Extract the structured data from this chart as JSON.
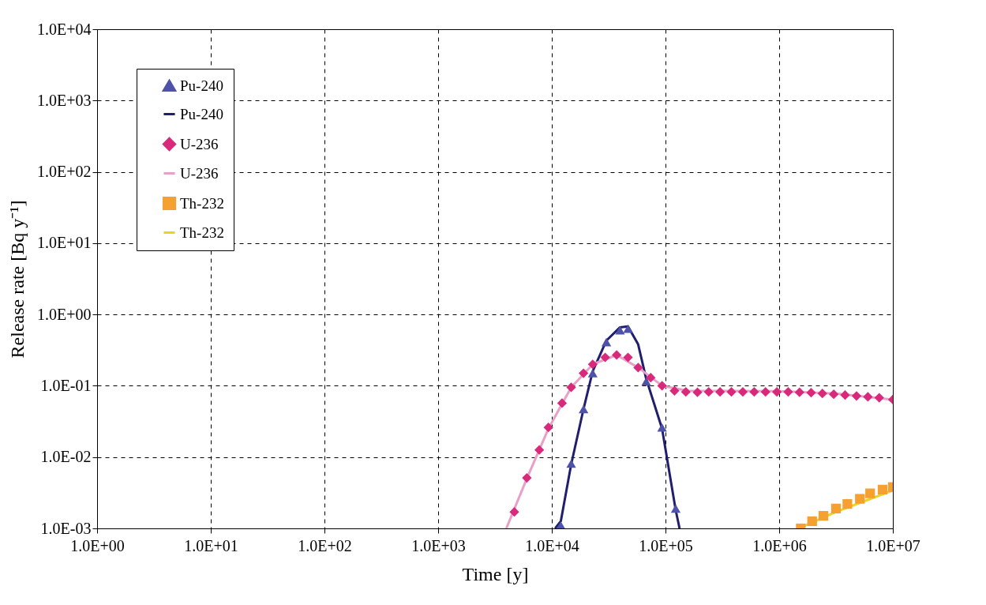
{
  "chart_data": {
    "type": "scatter",
    "xlabel": "Time [y]",
    "ylabel": "Release rate [Bq y⁻¹]",
    "log": "xy",
    "grid": true,
    "legend": "top left",
    "xlim": [
      1,
      10000000
    ],
    "xticks": [
      {
        "value": 1,
        "label": "1.0E+00"
      },
      {
        "value": 10,
        "label": "1.0E+01"
      },
      {
        "value": 100,
        "label": "1.0E+02"
      },
      {
        "value": 1000,
        "label": "1.0E+03"
      },
      {
        "value": 10000,
        "label": "1.0E+04"
      },
      {
        "value": 100000,
        "label": "1.0E+05"
      },
      {
        "value": 1000000,
        "label": "1.0E+06"
      },
      {
        "value": 10000000,
        "label": "1.0E+07"
      }
    ],
    "ylim": [
      0.001,
      10000
    ],
    "yticks": [
      {
        "value": 0.001,
        "label": "1.0E-03"
      },
      {
        "value": 0.01,
        "label": "1.0E-02"
      },
      {
        "value": 0.1,
        "label": "1.0E-01"
      },
      {
        "value": 1,
        "label": "1.0E+00"
      },
      {
        "value": 10,
        "label": "1.0E+01"
      },
      {
        "value": 100,
        "label": "1.0E+02"
      },
      {
        "value": 1000,
        "label": "1.0E+03"
      },
      {
        "value": 10000,
        "label": "1.0E+04"
      }
    ],
    "series": [
      {
        "name": "Pu-240",
        "marker": "triangle",
        "color": "#4e52a8",
        "x": [
          12000,
          14800,
          19000,
          22900,
          30200,
          39800,
          46800,
          67600,
          93300,
          123000
        ],
        "values": [
          0.0011,
          0.0081,
          0.047,
          0.15,
          0.41,
          0.6,
          0.63,
          0.115,
          0.026,
          0.0019
        ]
      },
      {
        "name": "Pu-240",
        "type": "line",
        "color": "#1f1f6e",
        "x": [
          10700,
          12000,
          14800,
          19000,
          22900,
          30200,
          39800,
          46800,
          57500,
          67600,
          93300,
          123000,
          133000
        ],
        "values": [
          0.001,
          0.00126,
          0.0079,
          0.047,
          0.16,
          0.43,
          0.66,
          0.68,
          0.38,
          0.126,
          0.025,
          0.0018,
          0.001
        ]
      },
      {
        "name": "U-236",
        "marker": "diamond",
        "color": "#d9297a",
        "x": [
          4680,
          6030,
          7760,
          9330,
          12300,
          14800,
          19000,
          22900,
          29500,
          37200,
          46800,
          57500,
          74100,
          93300,
          120000,
          151000,
          191000,
          240000,
          302000,
          380000,
          479000,
          603000,
          759000,
          955000,
          1200000,
          1510000,
          1910000,
          2400000,
          3020000,
          3800000,
          4790000,
          6030000,
          7590000,
          10000000
        ],
        "values": [
          0.0017,
          0.0051,
          0.0126,
          0.026,
          0.057,
          0.095,
          0.15,
          0.2,
          0.25,
          0.27,
          0.25,
          0.18,
          0.13,
          0.1,
          0.085,
          0.082,
          0.081,
          0.082,
          0.082,
          0.082,
          0.082,
          0.082,
          0.082,
          0.082,
          0.082,
          0.081,
          0.08,
          0.078,
          0.076,
          0.074,
          0.072,
          0.07,
          0.068,
          0.064
        ]
      },
      {
        "name": "U-236",
        "type": "line",
        "color": "#e8a0c8",
        "x": [
          3980,
          6030,
          9330,
          14800,
          22900,
          37200,
          57500,
          93300,
          158000,
          1000000,
          3160000,
          10000000
        ],
        "values": [
          0.001,
          0.005,
          0.025,
          0.095,
          0.2,
          0.27,
          0.18,
          0.1,
          0.085,
          0.084,
          0.078,
          0.064
        ]
      },
      {
        "name": "Th-232",
        "marker": "square",
        "color": "#f5a030",
        "x": [
          1550000,
          1950000,
          2450000,
          3160000,
          3980000,
          5130000,
          6310000,
          8130000,
          10000000
        ],
        "values": [
          0.001,
          0.00126,
          0.0015,
          0.0019,
          0.0022,
          0.0026,
          0.0031,
          0.0035,
          0.0038
        ]
      },
      {
        "name": "Th-232",
        "type": "line",
        "color": "#f0d020",
        "x": [
          1480000,
          3160000,
          10000000
        ],
        "values": [
          0.001,
          0.0017,
          0.0034
        ]
      }
    ]
  }
}
